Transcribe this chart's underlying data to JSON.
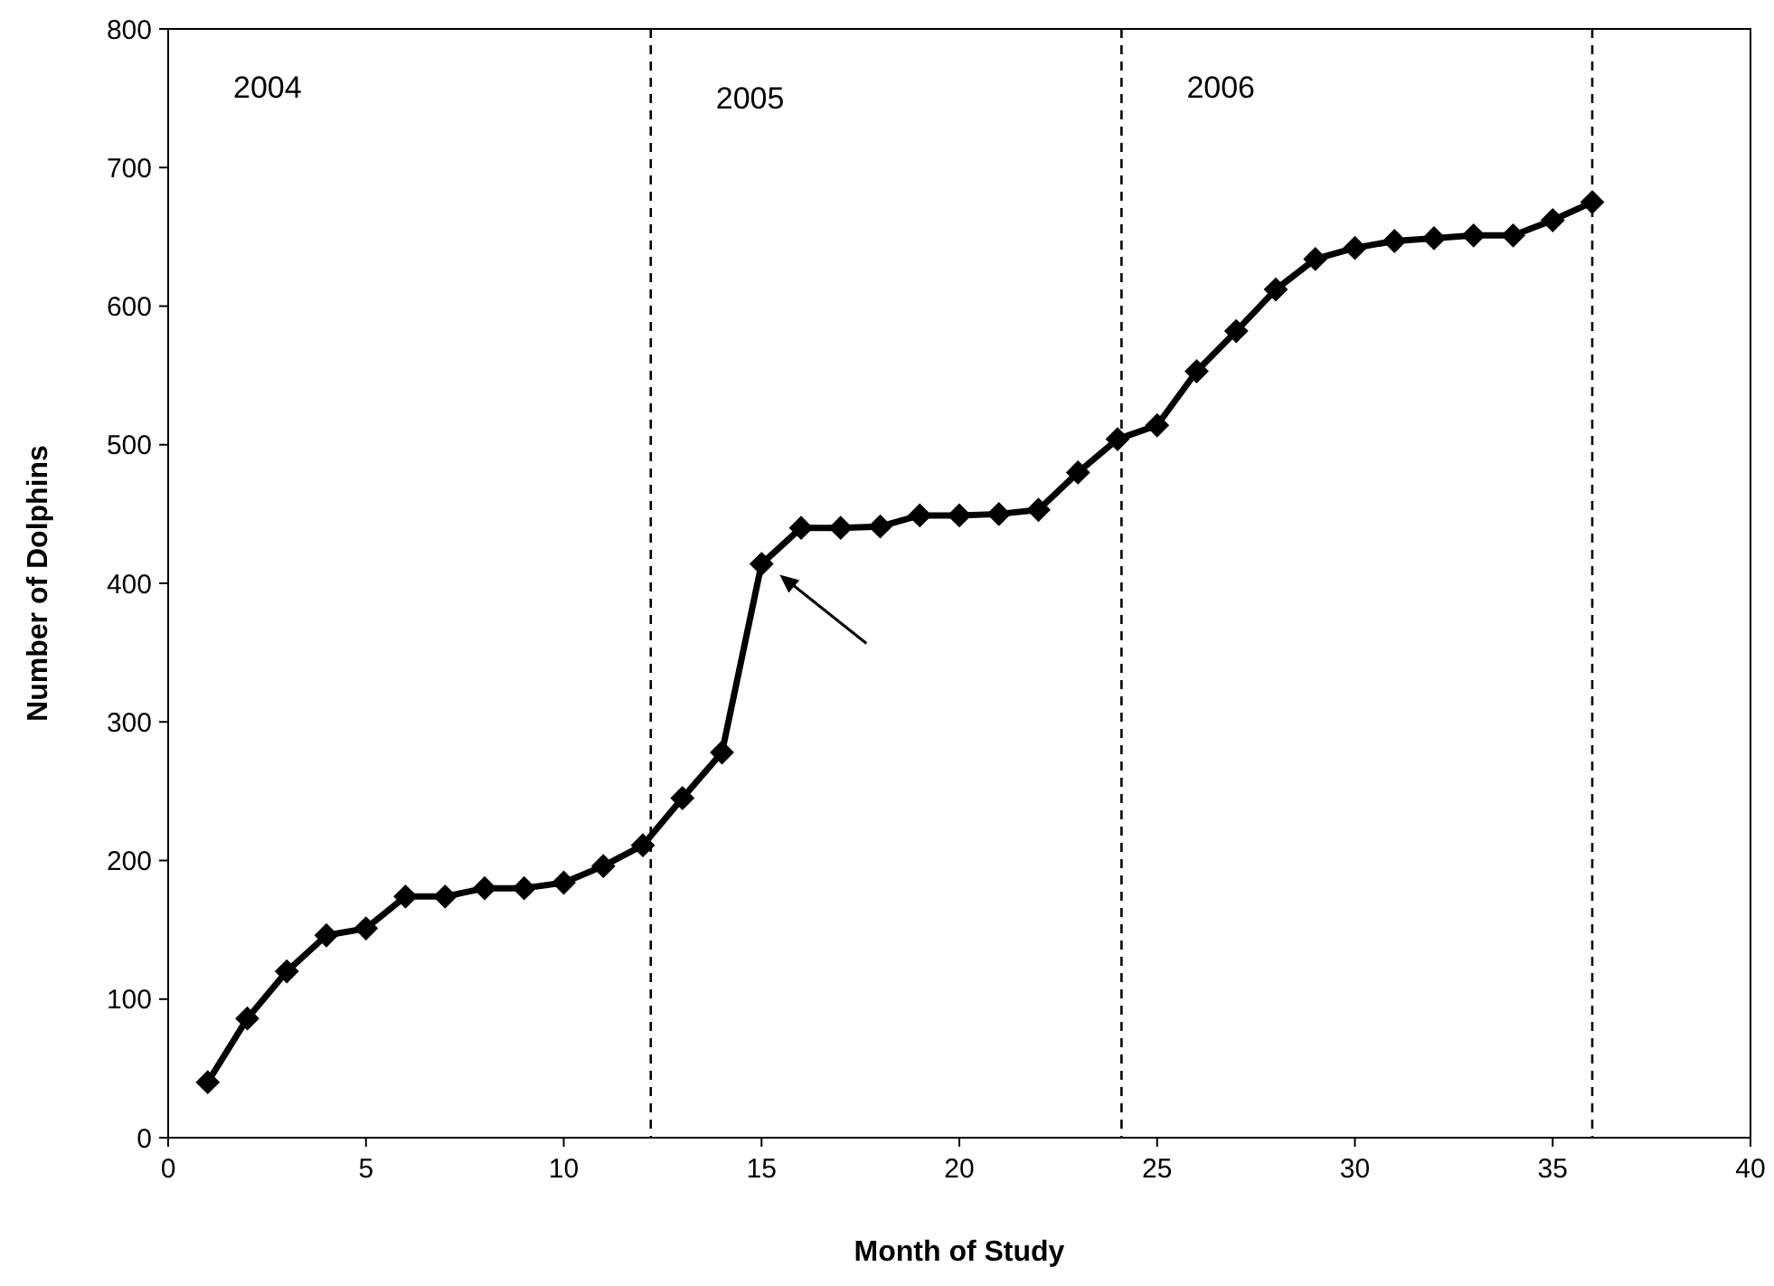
{
  "chart_data": {
    "type": "line",
    "xlabel": "Month of Study",
    "ylabel": "Number of Dolphins",
    "x": [
      1,
      2,
      3,
      4,
      5,
      6,
      7,
      8,
      9,
      10,
      11,
      12,
      13,
      14,
      15,
      16,
      17,
      18,
      19,
      20,
      21,
      22,
      23,
      24,
      25,
      26,
      27,
      28,
      29,
      30,
      31,
      32,
      33,
      34,
      35,
      36
    ],
    "series": [
      {
        "color": "#000000",
        "values": [
          40,
          86,
          120,
          146,
          151,
          174,
          174,
          180,
          180,
          184,
          196,
          211,
          245,
          278,
          414,
          440,
          440,
          441,
          449,
          449,
          450,
          453,
          480,
          504,
          514,
          553,
          582,
          612,
          634,
          642,
          647,
          649,
          651,
          651,
          662,
          675
        ]
      }
    ],
    "xlim": [
      0,
      40
    ],
    "xticks": [
      0,
      5,
      10,
      15,
      20,
      25,
      30,
      35,
      40
    ],
    "ylim": [
      0,
      800
    ],
    "yticks": [
      0,
      100,
      200,
      300,
      400,
      500,
      600,
      700,
      800
    ],
    "marker": "diamond",
    "line_style": "solid",
    "grid": false,
    "ref_lines": [
      {
        "axis": "x",
        "value": 12.2,
        "color": "#000000",
        "line_style": "dashed"
      },
      {
        "axis": "x",
        "value": 24.1,
        "color": "#000000",
        "line_style": "dashed"
      },
      {
        "axis": "x",
        "value": 36,
        "color": "#000000",
        "line_style": "dashed"
      }
    ],
    "annotations": [
      "2004",
      "2005",
      "2006"
    ]
  }
}
